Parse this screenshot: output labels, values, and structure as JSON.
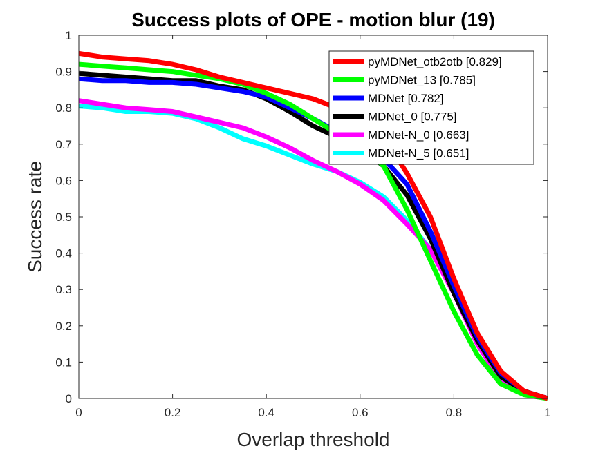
{
  "chart_data": {
    "type": "line",
    "title": "Success plots of OPE - motion blur (19)",
    "xlabel": "Overlap threshold",
    "ylabel": "Success rate",
    "xlim": [
      0,
      1
    ],
    "ylim": [
      0,
      1
    ],
    "x_ticks": [
      "0",
      "0.2",
      "0.4",
      "0.6",
      "0.8",
      "1"
    ],
    "y_ticks": [
      "0",
      "0.1",
      "0.2",
      "0.3",
      "0.4",
      "0.5",
      "0.6",
      "0.7",
      "0.8",
      "0.9",
      "1"
    ],
    "grid": false,
    "legend_position": "top-right",
    "x": [
      0,
      0.05,
      0.1,
      0.15,
      0.2,
      0.25,
      0.3,
      0.35,
      0.4,
      0.45,
      0.5,
      0.55,
      0.6,
      0.65,
      0.7,
      0.75,
      0.8,
      0.85,
      0.9,
      0.95,
      1
    ],
    "series": [
      {
        "name": "pyMDNet_otb2otb [0.829]",
        "color": "#ff0000",
        "values": [
          0.95,
          0.94,
          0.935,
          0.93,
          0.92,
          0.905,
          0.885,
          0.87,
          0.855,
          0.84,
          0.825,
          0.8,
          0.77,
          0.72,
          0.62,
          0.5,
          0.33,
          0.18,
          0.075,
          0.02,
          0.0
        ]
      },
      {
        "name": "pyMDNet_13 [0.785]",
        "color": "#00ff00",
        "values": [
          0.92,
          0.915,
          0.91,
          0.905,
          0.9,
          0.89,
          0.88,
          0.865,
          0.84,
          0.81,
          0.77,
          0.73,
          0.7,
          0.64,
          0.52,
          0.38,
          0.24,
          0.12,
          0.04,
          0.01,
          0.0
        ]
      },
      {
        "name": "MDNet [0.782]",
        "color": "#0000ff",
        "values": [
          0.88,
          0.875,
          0.875,
          0.87,
          0.87,
          0.865,
          0.855,
          0.845,
          0.83,
          0.8,
          0.77,
          0.735,
          0.71,
          0.66,
          0.59,
          0.46,
          0.31,
          0.17,
          0.07,
          0.02,
          0.0
        ]
      },
      {
        "name": "MDNet_0 [0.775]",
        "color": "#000000",
        "values": [
          0.895,
          0.89,
          0.885,
          0.88,
          0.875,
          0.875,
          0.86,
          0.85,
          0.825,
          0.79,
          0.75,
          0.72,
          0.69,
          0.64,
          0.56,
          0.44,
          0.29,
          0.16,
          0.06,
          0.02,
          0.0
        ]
      },
      {
        "name": "MDNet-N_0 [0.663]",
        "color": "#ff00ff",
        "values": [
          0.82,
          0.81,
          0.8,
          0.795,
          0.79,
          0.775,
          0.76,
          0.745,
          0.72,
          0.69,
          0.655,
          0.625,
          0.59,
          0.545,
          0.48,
          0.41,
          0.29,
          0.15,
          0.05,
          0.015,
          0.0
        ]
      },
      {
        "name": "MDNet-N_5 [0.651]",
        "color": "#00ffff",
        "values": [
          0.805,
          0.8,
          0.79,
          0.79,
          0.785,
          0.77,
          0.745,
          0.715,
          0.695,
          0.67,
          0.645,
          0.625,
          0.595,
          0.555,
          0.49,
          0.41,
          0.3,
          0.16,
          0.06,
          0.015,
          0.0
        ]
      }
    ]
  }
}
